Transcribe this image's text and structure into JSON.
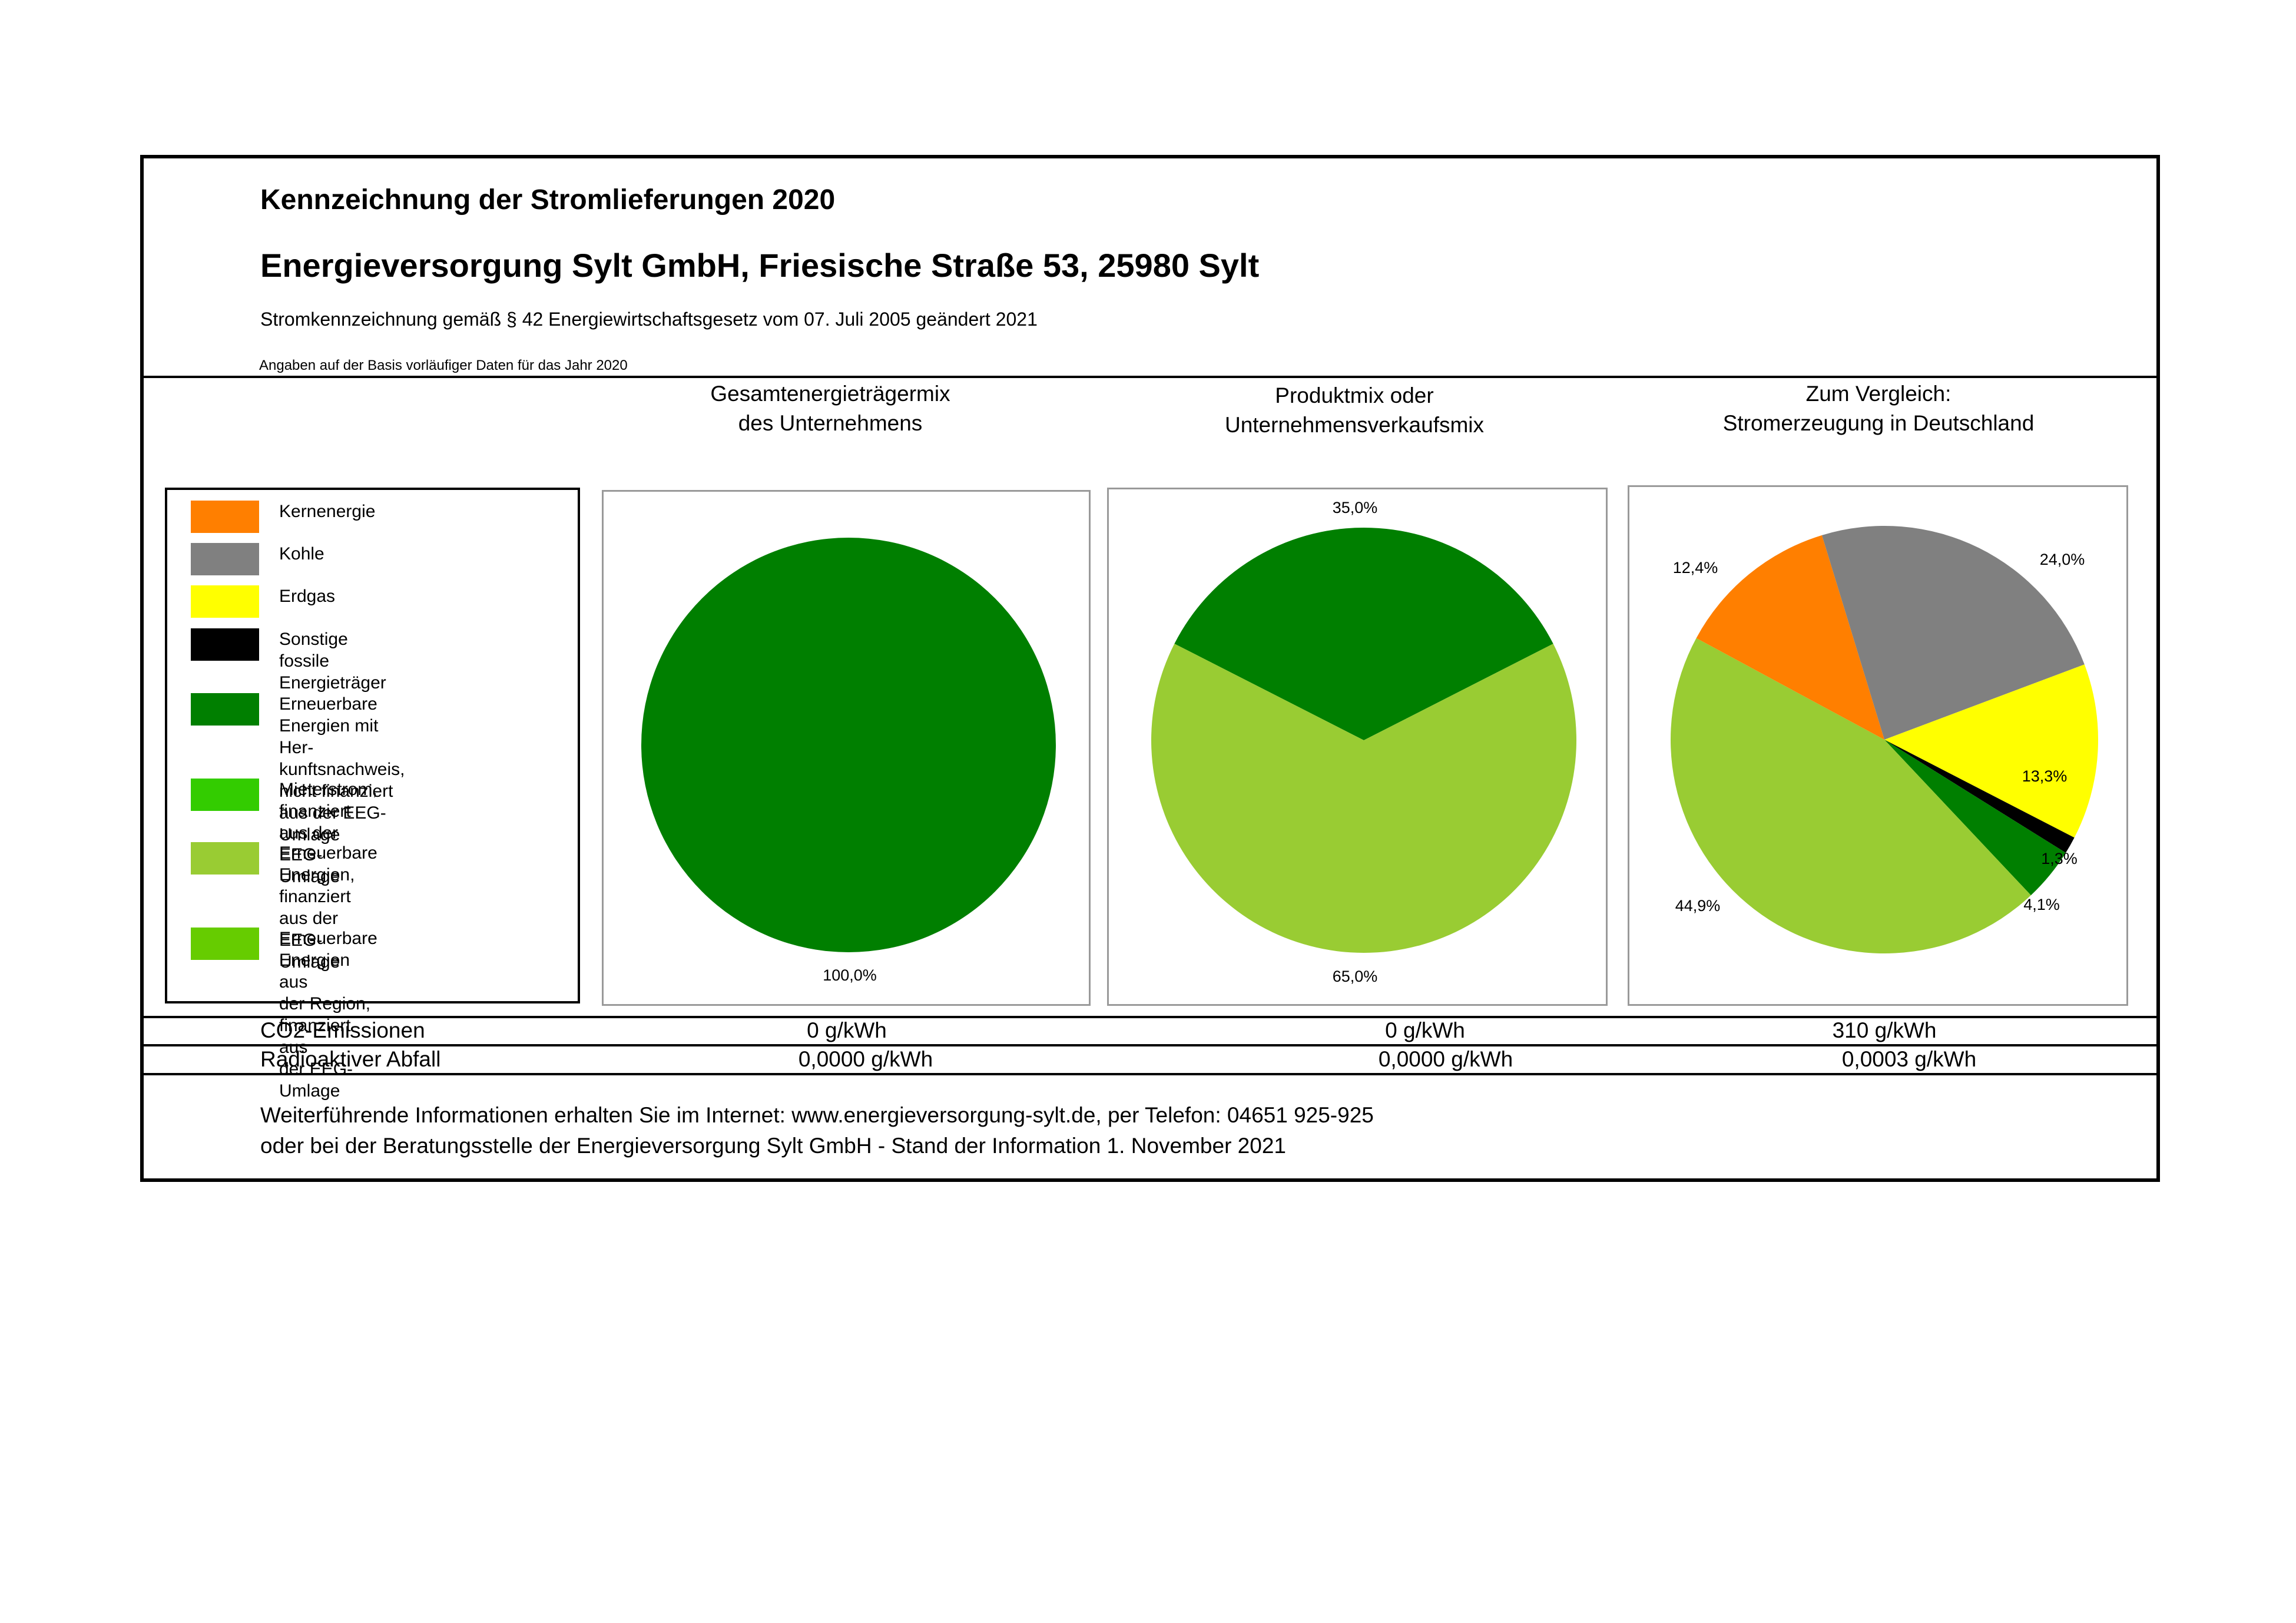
{
  "header": {
    "title": "Kennzeichnung der Stromlieferungen 2020",
    "company": "Energieversorgung Sylt GmbH, Friesische Straße 53, 25980 Sylt",
    "legal": "Stromkennzeichnung gemäß § 42 Energiewirtschaftsgesetz vom 07. Juli 2005 geändert 2021",
    "note": "Angaben auf der Basis vorläufiger Daten für das Jahr 2020"
  },
  "columns": {
    "col1": "Gesamtenergieträgermix\ndes Unternehmens",
    "col2": "Produktmix oder\nUnternehmensverkaufsmix",
    "col3": "Zum Vergleich:\nStromerzeugung in Deutschland"
  },
  "legend": [
    {
      "label": "Kernenergie",
      "color": "#ff7f00"
    },
    {
      "label": "Kohle",
      "color": "#808080"
    },
    {
      "label": "Erdgas",
      "color": "#ffff00"
    },
    {
      "label": "Sonstige fossile\nEnergieträger",
      "color": "#000000"
    },
    {
      "label": "Erneuerbare Energien mit Her-\nkunftsnachweis, nicht finanziert\naus der EEG-Umlage",
      "color": "#007f00"
    },
    {
      "label": "Mieterstrom, finanziert aus der\nEEG-Umlage",
      "color": "#33cc00"
    },
    {
      "label": "Erneuerbare Energien,\nfinanziert aus der\nEEG-Umlage",
      "color": "#99cc33"
    },
    {
      "label": "Erneuerbare Energien aus\nder Region, finanziert aus\nder EEG-Umlage",
      "color": "#66cc00"
    }
  ],
  "chart_data": [
    {
      "type": "pie",
      "title": "Gesamtenergieträgermix des Unternehmens",
      "slices": [
        {
          "name": "Erneuerbare Energien mit Herkunftsnachweis, nicht finanziert aus der EEG-Umlage",
          "value": 100.0,
          "label": "100,0%",
          "color": "#007f00"
        }
      ]
    },
    {
      "type": "pie",
      "title": "Produktmix oder Unternehmensverkaufsmix",
      "slices": [
        {
          "name": "Erneuerbare Energien mit Herkunftsnachweis, nicht finanziert aus der EEG-Umlage",
          "value": 35.0,
          "label": "35,0%",
          "color": "#007f00"
        },
        {
          "name": "Erneuerbare Energien, finanziert aus der EEG-Umlage",
          "value": 65.0,
          "label": "65,0%",
          "color": "#99cc33"
        }
      ]
    },
    {
      "type": "pie",
      "title": "Zum Vergleich: Stromerzeugung in Deutschland",
      "slices": [
        {
          "name": "Kohle",
          "value": 24.0,
          "label": "24,0%",
          "color": "#808080"
        },
        {
          "name": "Erdgas",
          "value": 13.3,
          "label": "13,3%",
          "color": "#ffff00"
        },
        {
          "name": "Sonstige fossile Energieträger",
          "value": 1.3,
          "label": "1,3%",
          "color": "#000000"
        },
        {
          "name": "Erneuerbare Energien mit Herkunftsnachweis, nicht finanziert aus der EEG-Umlage",
          "value": 4.1,
          "label": "4,1%",
          "color": "#007f00"
        },
        {
          "name": "Erneuerbare Energien, finanziert aus der EEG-Umlage",
          "value": 44.9,
          "label": "44,9%",
          "color": "#99cc33"
        },
        {
          "name": "Kernenergie",
          "value": 12.4,
          "label": "12,4%",
          "color": "#ff7f00"
        }
      ]
    }
  ],
  "table": {
    "co2": {
      "label": "CO2-Emissionen",
      "values": [
        "0 g/kWh",
        "0 g/kWh",
        "310 g/kWh"
      ]
    },
    "waste": {
      "label": "Radioaktiver Abfall",
      "values": [
        "0,0000 g/kWh",
        "0,0000 g/kWh",
        "0,0003 g/kWh"
      ]
    }
  },
  "footer": {
    "line1": "Weiterführende Informationen erhalten Sie im Internet: www.energieversorgung-sylt.de, per Telefon: 04651 925-925",
    "line2": "oder bei der Beratungsstelle der Energieversorgung Sylt GmbH - Stand der Information 1. November 2021"
  }
}
